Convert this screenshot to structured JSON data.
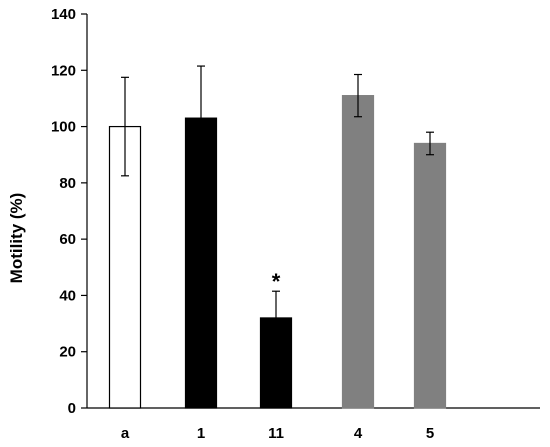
{
  "chart_data": {
    "type": "bar",
    "title": "",
    "xlabel": "",
    "ylabel": "Motility (%)",
    "ylim": [
      0,
      140
    ],
    "yticks": [
      0,
      20,
      40,
      60,
      80,
      100,
      120,
      140
    ],
    "categories": [
      "a",
      "1",
      "11",
      "4",
      "5"
    ],
    "values": [
      100,
      103,
      32,
      111,
      94
    ],
    "errors": [
      17.5,
      18.5,
      9.5,
      7.5,
      4
    ],
    "bar_styles": [
      {
        "fill": "#ffffff",
        "stroke": "#000000"
      },
      {
        "fill": "#000000",
        "stroke": "#000000"
      },
      {
        "fill": "#000000",
        "stroke": "#000000"
      },
      {
        "fill": "#808080",
        "stroke": "#808080"
      },
      {
        "fill": "#808080",
        "stroke": "#808080"
      }
    ],
    "annotations": [
      {
        "category": "11",
        "text": "*"
      }
    ],
    "grid": false,
    "legend": "none"
  }
}
